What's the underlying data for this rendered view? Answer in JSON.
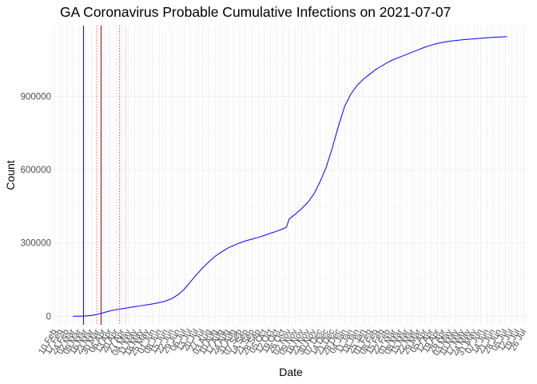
{
  "chart_data": {
    "type": "line",
    "title": "GA Coronavirus Probable Cumulative Infections on 2021-07-07",
    "xlabel": "Date",
    "ylabel": "Count",
    "x_range": [
      "2020-02-10",
      "2021-07-30"
    ],
    "ylim": [
      -35000,
      1190000
    ],
    "y_ticks": [
      0,
      300000,
      600000,
      900000
    ],
    "y_tick_labels": [
      "0",
      "300000",
      "600000",
      "900000"
    ],
    "x_tick_labels": [
      "10 Feb",
      "17 Feb",
      "24 Feb",
      "02 Mar",
      "09 Mar",
      "16 Mar",
      "23 Mar",
      "30 Mar",
      "06 Apr",
      "13 Apr",
      "20 Apr",
      "27 Apr",
      "04 May",
      "11 May",
      "18 May",
      "25 May",
      "01 Jun",
      "08 Jun",
      "15 Jun",
      "22 Jun",
      "29 Jun",
      "06 Jul",
      "13 Jul",
      "20 Jul",
      "27 Jul",
      "03 Aug",
      "10 Aug",
      "17 Aug",
      "24 Aug",
      "31 Aug",
      "07 Sep",
      "14 Sep",
      "21 Sep",
      "28 Sep",
      "05 Oct",
      "12 Oct",
      "19 Oct",
      "26 Oct",
      "02 Nov",
      "09 Nov",
      "16 Nov",
      "23 Nov",
      "30 Nov",
      "07 Dec",
      "14 Dec",
      "21 Dec",
      "28 Dec",
      "04 Jan",
      "11 Jan",
      "18 Jan",
      "25 Jan",
      "01 Feb",
      "08 Feb",
      "15 Feb",
      "22 Feb",
      "01 Mar",
      "08 Mar",
      "15 Mar",
      "22 Mar",
      "29 Mar",
      "05 Apr",
      "12 Apr",
      "19 Apr",
      "26 Apr",
      "03 May",
      "10 May",
      "17 May",
      "24 May",
      "31 May",
      "07 Jun",
      "14 Jun",
      "21 Jun",
      "28 Jun",
      "05 Jul",
      "12 Jul",
      "19 Jul",
      "26 Jul"
    ],
    "grid": true,
    "series": [
      {
        "color": "#0000ff",
        "x": [
          "2020-03-02",
          "2020-03-09",
          "2020-03-16",
          "2020-03-23",
          "2020-03-30",
          "2020-04-06",
          "2020-04-13",
          "2020-04-20",
          "2020-04-27",
          "2020-05-04",
          "2020-05-11",
          "2020-05-18",
          "2020-05-25",
          "2020-06-01",
          "2020-06-08",
          "2020-06-15",
          "2020-06-22",
          "2020-06-29",
          "2020-07-06",
          "2020-07-13",
          "2020-07-20",
          "2020-07-27",
          "2020-08-03",
          "2020-08-10",
          "2020-08-17",
          "2020-08-24",
          "2020-08-31",
          "2020-09-07",
          "2020-09-14",
          "2020-09-21",
          "2020-09-28",
          "2020-10-05",
          "2020-10-12",
          "2020-10-19",
          "2020-10-26",
          "2020-10-30",
          "2020-11-02",
          "2020-11-09",
          "2020-11-16",
          "2020-11-23",
          "2020-11-30",
          "2020-12-07",
          "2020-12-14",
          "2020-12-21",
          "2020-12-28",
          "2021-01-04",
          "2021-01-11",
          "2021-01-18",
          "2021-01-25",
          "2021-02-01",
          "2021-02-08",
          "2021-02-15",
          "2021-02-22",
          "2021-03-01",
          "2021-03-08",
          "2021-03-15",
          "2021-03-22",
          "2021-03-29",
          "2021-04-05",
          "2021-04-12",
          "2021-04-19",
          "2021-04-26",
          "2021-05-03",
          "2021-05-10",
          "2021-05-17",
          "2021-05-24",
          "2021-05-31",
          "2021-06-07",
          "2021-06-14",
          "2021-06-21",
          "2021-06-28",
          "2021-07-07"
        ],
        "y": [
          0,
          0,
          1000,
          3000,
          8000,
          15000,
          22000,
          27000,
          31000,
          35000,
          39000,
          43000,
          47000,
          51000,
          56000,
          62000,
          72000,
          88000,
          110000,
          140000,
          170000,
          198000,
          222000,
          245000,
          262000,
          278000,
          290000,
          300000,
          309000,
          316000,
          323000,
          331000,
          340000,
          348000,
          358000,
          365000,
          398000,
          418000,
          440000,
          465000,
          500000,
          550000,
          610000,
          690000,
          780000,
          860000,
          910000,
          945000,
          970000,
          990000,
          1010000,
          1025000,
          1040000,
          1052000,
          1062000,
          1072000,
          1082000,
          1092000,
          1102000,
          1110000,
          1117000,
          1122000,
          1126000,
          1129000,
          1132000,
          1134000,
          1136000,
          1138000,
          1140000,
          1142000,
          1143500,
          1145000
        ]
      }
    ],
    "reference_lines": [
      {
        "date": "2020-03-14",
        "color": "#0000ff",
        "style": "solid"
      },
      {
        "date": "2020-04-03",
        "color": "#8b0000",
        "style": "solid"
      },
      {
        "date": "2020-03-29",
        "color": "#e57373",
        "style": "dotted"
      },
      {
        "date": "2020-04-24",
        "color": "#e53935",
        "style": "dotted"
      },
      {
        "date": "2020-05-01",
        "color": "#ffcccc",
        "style": "solid"
      }
    ]
  }
}
